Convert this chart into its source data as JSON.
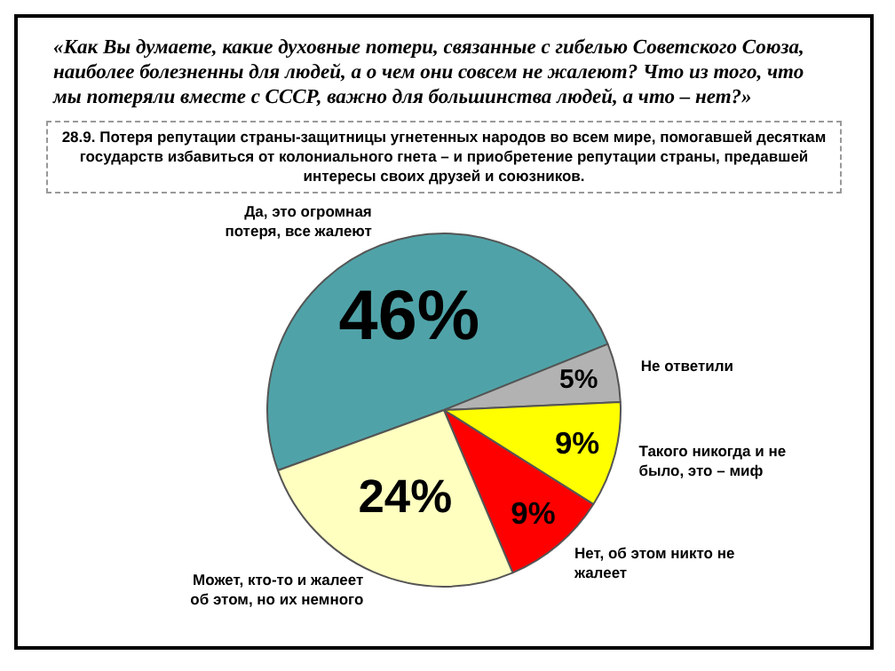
{
  "chart_data": {
    "type": "pie",
    "title": "«Как Вы думаете, какие духовные потери, связанные с гибелью Советского Союза, наиболее болезненны для людей, а о чем они совсем не жалеют? Что из того, что мы потеряли вместе с СССР, важно для большинства людей, а что – нет?»",
    "subtitle": "28.9. Потеря репутации страны-защитницы угнетенных народов во всем мире, помогавшей десяткам государств избавиться от колониального гнета – и приобретение репутации страны,  предавшей интересы своих друзей и союзников.",
    "categories": [
      "Да, это огромная потеря, все жалеют",
      "Не ответили",
      "Такого никогда и не было, это – миф",
      "Нет, об этом никто не жалеет",
      "Может, кто-то и жалеет об этом, но их немного"
    ],
    "values": [
      46,
      5,
      9,
      9,
      24
    ],
    "value_labels": [
      "46%",
      "5%",
      "9%",
      "9%",
      "24%"
    ],
    "colors": [
      "#4fa3a8",
      "#b2b2b2",
      "#ffff00",
      "#ff0000",
      "#ffffc0"
    ],
    "legend": false
  }
}
